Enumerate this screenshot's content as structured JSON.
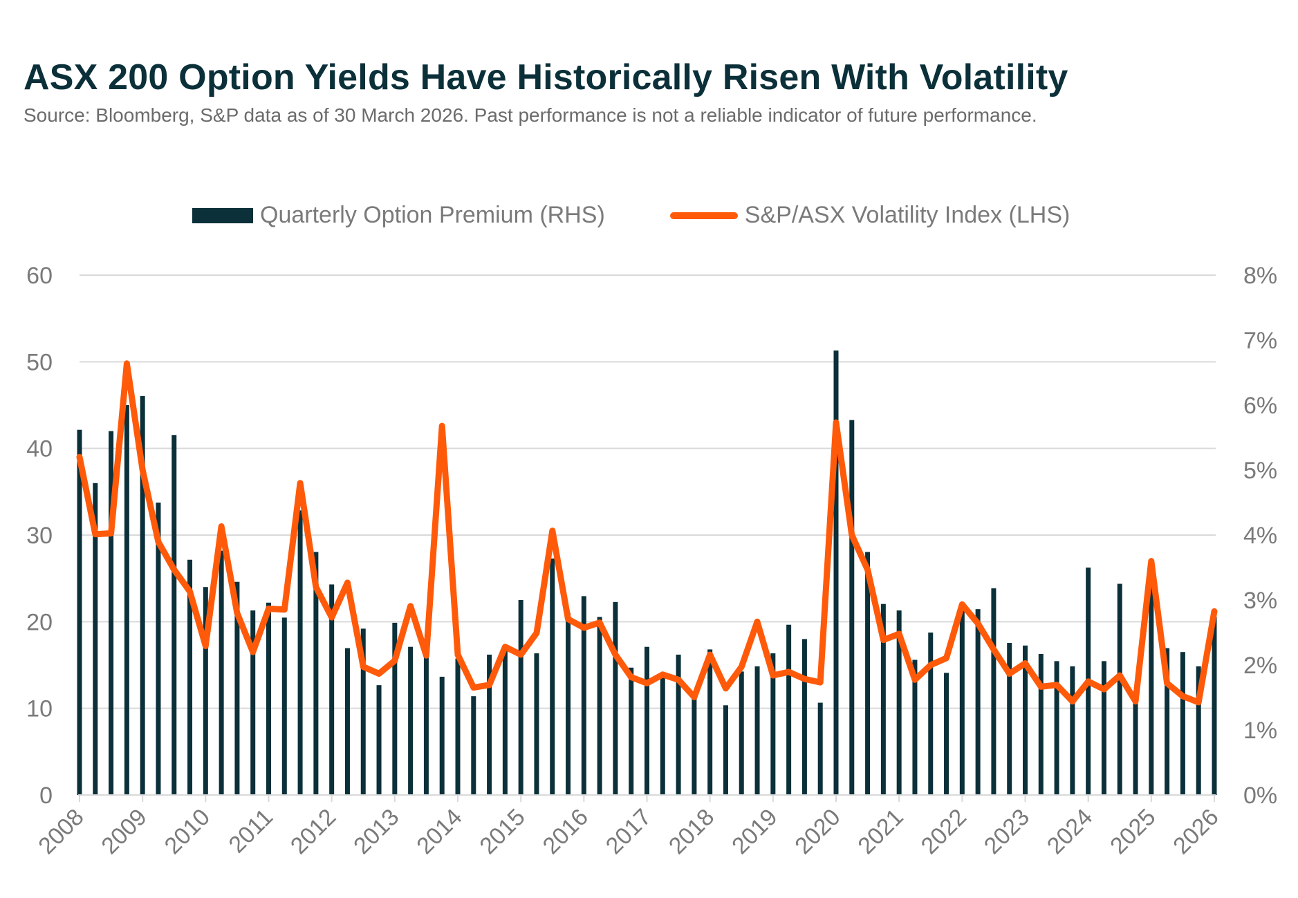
{
  "title": "ASX 200 Option Yields Have Historically Risen With Volatility",
  "subtitle": "Source: Bloomberg, S&P data as of 30 March 2026. Past performance is not a reliable indicator of future performance.",
  "colors": {
    "bar": "#0b3039",
    "line": "#ff5a0a",
    "grid": "#d9d9d9",
    "title": "#0b3039",
    "text": "#7a7a7a"
  },
  "chart_data": {
    "type": "bar+line",
    "legend_position": "top",
    "grid": true,
    "x_tick_labels": [
      "2008",
      "2009",
      "2010",
      "2011",
      "2012",
      "2013",
      "2014",
      "2015",
      "2016",
      "2017",
      "2018",
      "2019",
      "2020",
      "2021",
      "2022",
      "2023",
      "2024",
      "2025",
      "2026"
    ],
    "y_left": {
      "range": [
        0,
        60
      ],
      "ticks": [
        "0",
        "10",
        "20",
        "30",
        "40",
        "50",
        "60"
      ]
    },
    "y_right": {
      "range": [
        0,
        8
      ],
      "unit": "%",
      "ticks": [
        "0%",
        "1%",
        "2%",
        "3%",
        "4%",
        "5%",
        "6%",
        "7%",
        "8%"
      ]
    },
    "series": [
      {
        "name": "Quarterly Option Premium (RHS)",
        "type": "bar",
        "axis": "right",
        "values": [
          5.62,
          4.8,
          5.6,
          6.0,
          6.14,
          4.5,
          5.54,
          3.62,
          3.2,
          3.76,
          3.28,
          2.84,
          2.96,
          2.73,
          4.38,
          3.74,
          3.24,
          2.26,
          2.56,
          1.69,
          2.65,
          2.28,
          2.17,
          1.82,
          2.1,
          1.52,
          2.16,
          2.24,
          3.0,
          2.18,
          3.64,
          2.8,
          3.06,
          2.74,
          2.97,
          1.96,
          2.28,
          1.82,
          2.16,
          1.5,
          2.24,
          1.38,
          1.9,
          1.98,
          2.18,
          2.62,
          2.4,
          1.42,
          6.84,
          5.77,
          3.74,
          2.94,
          2.84,
          2.08,
          2.5,
          1.88,
          2.88,
          2.86,
          3.18,
          2.34,
          2.3,
          2.17,
          2.06,
          1.98,
          3.5,
          2.06,
          3.25,
          1.55,
          3.2,
          2.26,
          2.2,
          1.98,
          2.74
        ]
      },
      {
        "name": "S&P/ASX Volatility Index (LHS)",
        "type": "line",
        "axis": "left",
        "values": [
          39,
          30.1,
          30.2,
          49.8,
          37.5,
          29.2,
          26,
          23.5,
          17.2,
          31,
          21,
          16.5,
          21.5,
          21.4,
          36,
          24,
          20.5,
          24.5,
          14.8,
          14,
          15.5,
          21.8,
          16.1,
          42.6,
          16.2,
          12.4,
          12.7,
          17.1,
          16.2,
          18.7,
          30.5,
          20.3,
          19.3,
          19.9,
          16.2,
          13.6,
          12.9,
          13.9,
          13.3,
          11.3,
          16.2,
          12.3,
          14.8,
          20,
          13.8,
          14.2,
          13.4,
          13,
          43,
          30,
          26,
          17.9,
          18.6,
          13.3,
          15,
          15.8,
          22,
          19.8,
          16.8,
          14,
          15.2,
          12.5,
          12.7,
          10.8,
          13.1,
          12.2,
          13.8,
          10.8,
          27,
          12.9,
          11.4,
          10.7,
          21.2
        ]
      }
    ]
  }
}
